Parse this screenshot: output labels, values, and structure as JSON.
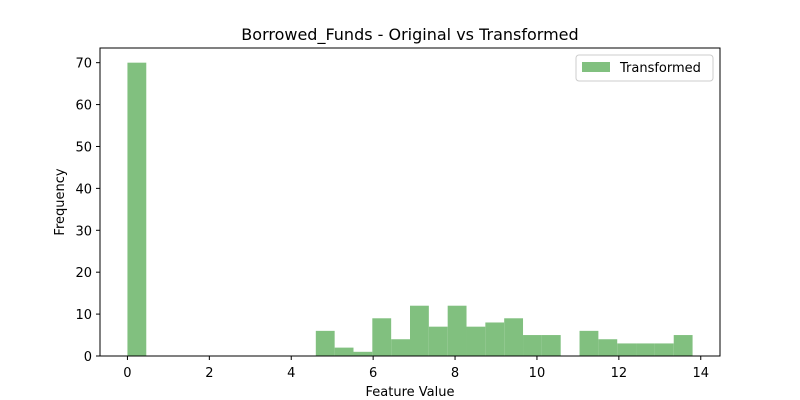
{
  "chart_data": {
    "type": "bar",
    "title": "Borrowed_Funds - Original vs Transformed",
    "xlabel": "Feature Value",
    "ylabel": "Frequency",
    "xlim": [
      -0.67,
      14.47
    ],
    "ylim": [
      0,
      73.5
    ],
    "xticks": [
      0,
      2,
      4,
      6,
      8,
      10,
      12,
      14
    ],
    "yticks": [
      0,
      10,
      20,
      30,
      40,
      50,
      60,
      70
    ],
    "bin_width": 0.46,
    "legend": {
      "position": "top-right",
      "entries": [
        "Transformed"
      ]
    },
    "grid": false,
    "series": [
      {
        "name": "Transformed",
        "color": "#81c07f",
        "bins": [
          {
            "x0": 0.0,
            "x1": 0.46,
            "count": 70
          },
          {
            "x0": 4.6,
            "x1": 5.06,
            "count": 6
          },
          {
            "x0": 5.06,
            "x1": 5.52,
            "count": 2
          },
          {
            "x0": 5.52,
            "x1": 5.98,
            "count": 1
          },
          {
            "x0": 5.98,
            "x1": 6.44,
            "count": 9
          },
          {
            "x0": 6.44,
            "x1": 6.9,
            "count": 4
          },
          {
            "x0": 6.9,
            "x1": 7.36,
            "count": 12
          },
          {
            "x0": 7.36,
            "x1": 7.82,
            "count": 7
          },
          {
            "x0": 7.82,
            "x1": 8.28,
            "count": 12
          },
          {
            "x0": 8.28,
            "x1": 8.74,
            "count": 7
          },
          {
            "x0": 8.74,
            "x1": 9.2,
            "count": 8
          },
          {
            "x0": 9.2,
            "x1": 9.66,
            "count": 9
          },
          {
            "x0": 9.66,
            "x1": 10.12,
            "count": 5
          },
          {
            "x0": 10.12,
            "x1": 10.58,
            "count": 5
          },
          {
            "x0": 11.04,
            "x1": 11.5,
            "count": 6
          },
          {
            "x0": 11.5,
            "x1": 11.96,
            "count": 4
          },
          {
            "x0": 11.96,
            "x1": 12.42,
            "count": 3
          },
          {
            "x0": 12.42,
            "x1": 12.88,
            "count": 3
          },
          {
            "x0": 12.88,
            "x1": 13.34,
            "count": 3
          },
          {
            "x0": 13.34,
            "x1": 13.8,
            "count": 5
          }
        ]
      }
    ]
  }
}
